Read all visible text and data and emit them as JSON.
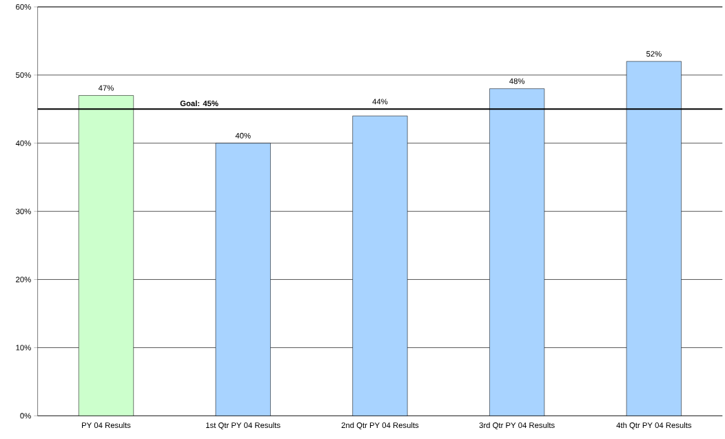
{
  "chart_data": {
    "type": "bar",
    "categories": [
      "PY 04 Results",
      "1st Qtr PY 04 Results",
      "2nd Qtr PY 04 Results",
      "3rd Qtr PY 04 Results",
      "4th Qtr PY 04 Results"
    ],
    "values": [
      47,
      40,
      44,
      48,
      52
    ],
    "colors": [
      "#ccffcc",
      "#a8d3ff",
      "#a8d3ff",
      "#a8d3ff",
      "#a8d3ff"
    ],
    "value_labels": [
      "47%",
      "40%",
      "44%",
      "48%",
      "52%"
    ],
    "ylim": [
      0,
      60
    ],
    "yticks": [
      {
        "value": 0,
        "label": "0%"
      },
      {
        "value": 10,
        "label": "10%"
      },
      {
        "value": 20,
        "label": "20%"
      },
      {
        "value": 30,
        "label": "30%"
      },
      {
        "value": 40,
        "label": "40%"
      },
      {
        "value": 50,
        "label": "50%"
      },
      {
        "value": 60,
        "label": "60%"
      }
    ],
    "grid": "y",
    "ref_lines": [
      {
        "axis": "y",
        "value": 45,
        "label": "Goal: 45%",
        "color": "#000000"
      }
    ]
  }
}
